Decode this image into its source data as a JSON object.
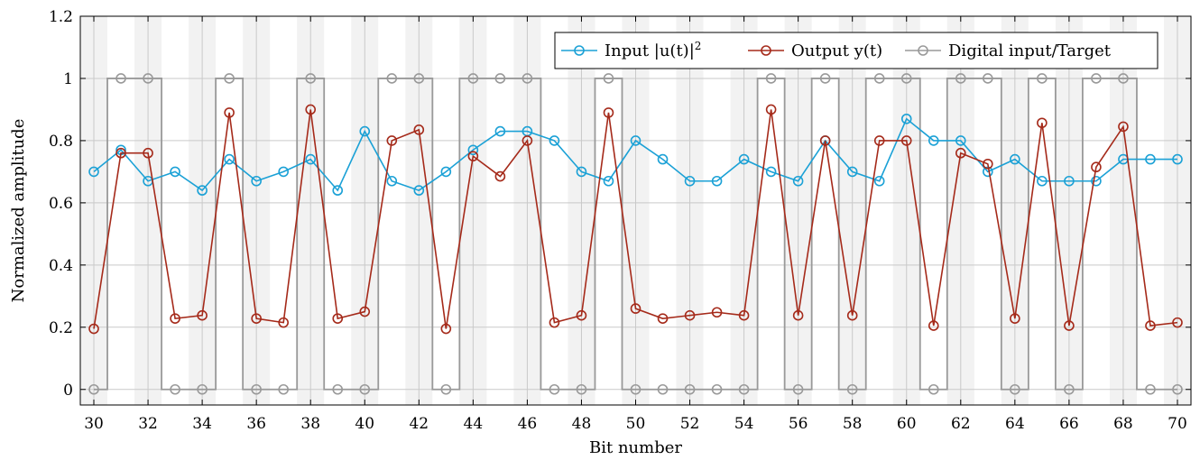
{
  "chart_data": {
    "type": "line",
    "xlabel": "Bit number",
    "ylabel": "Normalized amplitude",
    "xlim": [
      29.5,
      70.5
    ],
    "ylim": [
      -0.05,
      1.2
    ],
    "x_ticks": [
      30,
      32,
      34,
      36,
      38,
      40,
      42,
      44,
      46,
      48,
      50,
      52,
      54,
      56,
      58,
      60,
      62,
      64,
      66,
      68,
      70
    ],
    "x_tick_labels": [
      "30",
      "32",
      "34",
      "36",
      "38",
      "40",
      "42",
      "44",
      "46",
      "48",
      "50",
      "52",
      "54",
      "56",
      "58",
      "60",
      "62",
      "64",
      "66",
      "68",
      "70"
    ],
    "y_ticks": [
      0,
      0.2,
      0.4,
      0.6,
      0.8,
      1.0,
      1.2
    ],
    "y_tick_labels": [
      "0",
      "0.2",
      "0.4",
      "0.6",
      "0.8",
      "1",
      "1.2"
    ],
    "grid": true,
    "legend_position": "top-right",
    "background_bands": "alternating light-gray band per bit",
    "x": [
      30,
      31,
      32,
      33,
      34,
      35,
      36,
      37,
      38,
      39,
      40,
      41,
      42,
      43,
      44,
      45,
      46,
      47,
      48,
      49,
      50,
      51,
      52,
      53,
      54,
      55,
      56,
      57,
      58,
      59,
      60,
      61,
      62,
      63,
      64,
      65,
      66,
      67,
      68,
      69,
      70
    ],
    "series": [
      {
        "name": "Input |u(t)|",
        "name_sup": "2",
        "color": "#1BA1D6",
        "marker": "circle",
        "values": [
          0.7,
          0.77,
          0.67,
          0.7,
          0.64,
          0.74,
          0.67,
          0.7,
          0.74,
          0.64,
          0.83,
          0.67,
          0.64,
          0.7,
          0.77,
          0.83,
          0.83,
          0.8,
          0.7,
          0.67,
          0.8,
          0.74,
          0.67,
          0.67,
          0.74,
          0.7,
          0.67,
          0.8,
          0.7,
          0.67,
          0.87,
          0.8,
          0.8,
          0.7,
          0.74,
          0.67,
          0.67,
          0.67,
          0.74,
          0.74,
          0.74
        ]
      },
      {
        "name": "Output y(t)",
        "color": "#A52A1A",
        "marker": "circle",
        "values": [
          0.195,
          0.76,
          0.76,
          0.228,
          0.238,
          0.89,
          0.228,
          0.215,
          0.9,
          0.228,
          0.25,
          0.8,
          0.835,
          0.195,
          0.75,
          0.685,
          0.8,
          0.215,
          0.238,
          0.89,
          0.26,
          0.228,
          0.238,
          0.248,
          0.238,
          0.9,
          0.238,
          0.8,
          0.238,
          0.8,
          0.8,
          0.205,
          0.76,
          0.725,
          0.228,
          0.857,
          0.205,
          0.715,
          0.845,
          0.205,
          0.215
        ]
      },
      {
        "name": "Digital input/Target",
        "color": "#999999",
        "marker": "circle",
        "step": true,
        "values": [
          0,
          1,
          1,
          0,
          0,
          1,
          0,
          0,
          1,
          0,
          0,
          1,
          1,
          0,
          1,
          1,
          1,
          0,
          0,
          1,
          0,
          0,
          0,
          0,
          0,
          1,
          0,
          1,
          0,
          1,
          1,
          0,
          1,
          1,
          0,
          1,
          0,
          1,
          1,
          0,
          0
        ]
      }
    ]
  }
}
